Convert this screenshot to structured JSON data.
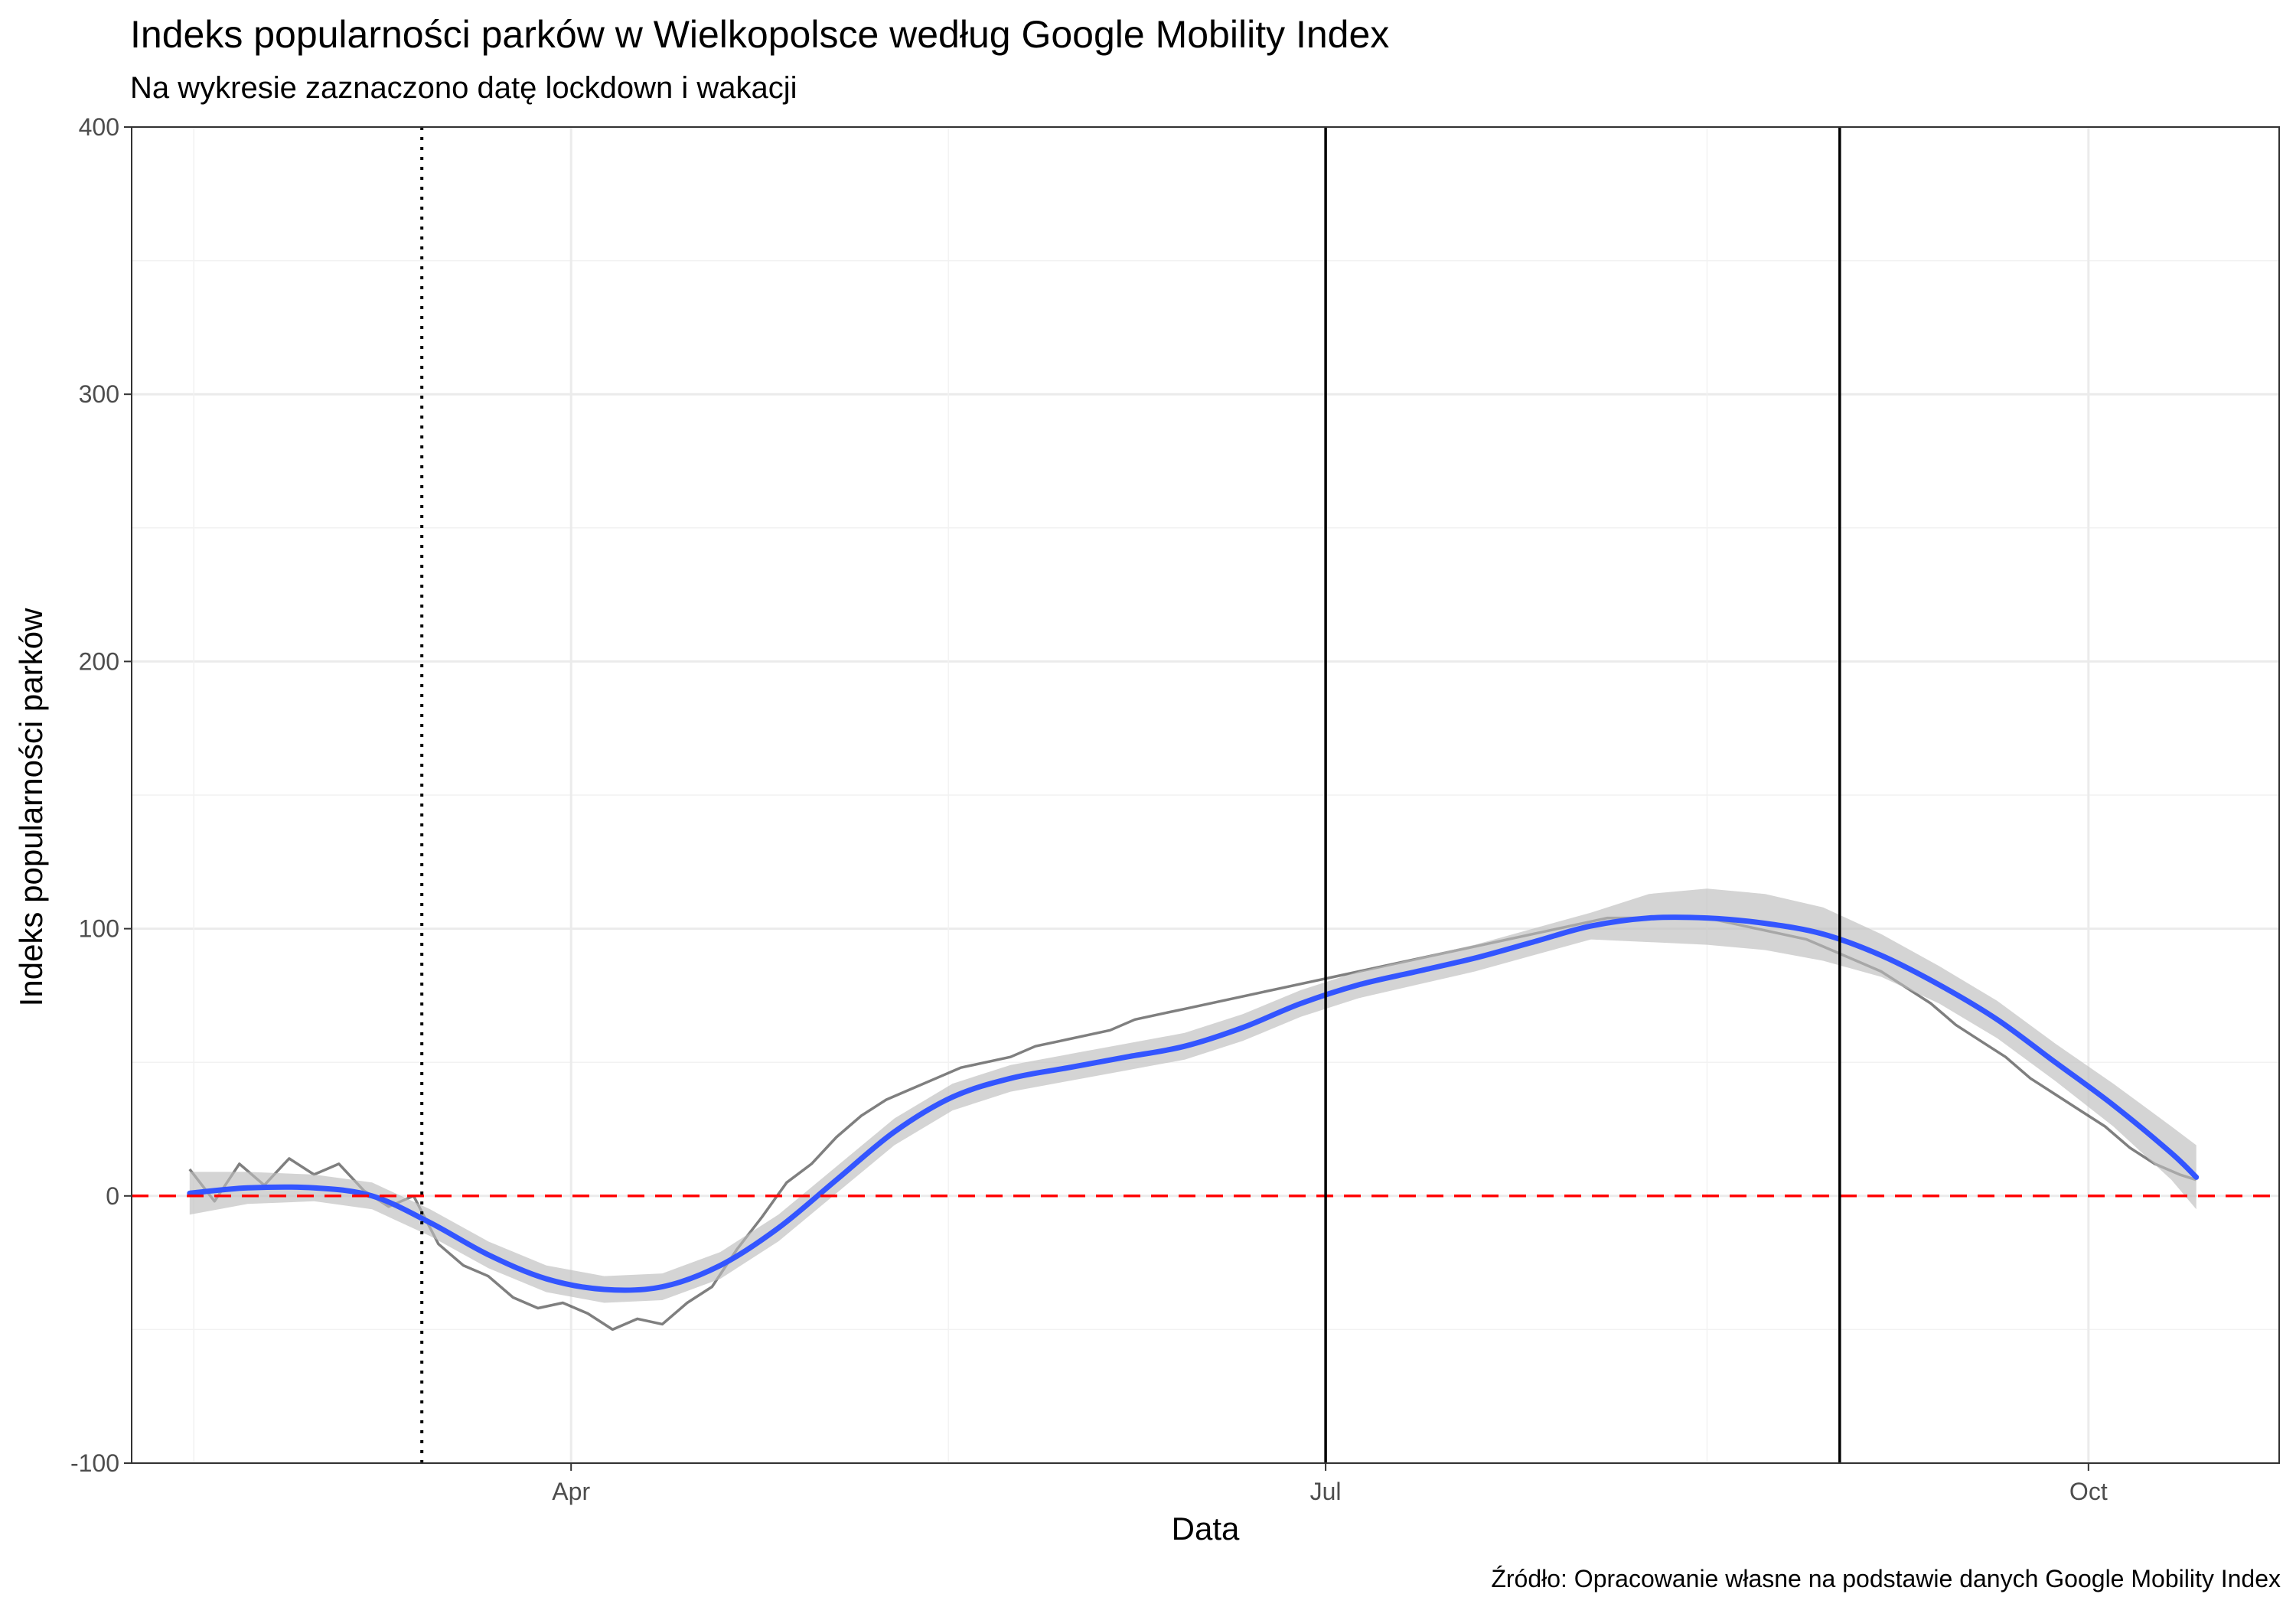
{
  "chart_data": {
    "type": "line",
    "title": "Indeks popularności parków w Wielkopolsce według Google Mobility Index",
    "subtitle": "Na wykresie zaznaczono datę lockdown i wakacji",
    "xlabel": "Data",
    "ylabel": "Indeks popularności parków",
    "caption": "Źródło: Opracowanie własne na podstawie danych Google Mobility Index",
    "x_type": "date",
    "xlim": [
      "2020-02-08",
      "2020-10-24"
    ],
    "ylim": [
      -100,
      400
    ],
    "x_ticks": [
      {
        "date": "2020-04-01",
        "label": "Apr"
      },
      {
        "date": "2020-07-01",
        "label": "Jul"
      },
      {
        "date": "2020-10-01",
        "label": "Oct"
      }
    ],
    "y_ticks": [
      -100,
      0,
      100,
      200,
      300,
      400
    ],
    "grid": true,
    "reference_lines": [
      {
        "type": "horizontal",
        "y": 0,
        "color": "#ff0000",
        "style": "dashed"
      },
      {
        "type": "vertical",
        "x": "2020-03-14",
        "color": "#000000",
        "style": "dotted",
        "meaning": "lockdown"
      },
      {
        "type": "vertical",
        "x": "2020-07-01",
        "color": "#000000",
        "style": "solid",
        "meaning": "wakacje start"
      },
      {
        "type": "vertical",
        "x": "2020-09-01",
        "color": "#000000",
        "style": "solid",
        "meaning": "wakacje koniec"
      }
    ],
    "series_color": "#000000",
    "series_opacity": 0.5,
    "series": [
      {
        "values": [
          [
            "2020-02-15",
            10
          ],
          [
            "2020-02-18",
            -2
          ],
          [
            "2020-02-21",
            12
          ],
          [
            "2020-02-24",
            4
          ],
          [
            "2020-02-27",
            14
          ],
          [
            "2020-03-01",
            8
          ],
          [
            "2020-03-04",
            12
          ],
          [
            "2020-03-07",
            2
          ],
          [
            "2020-03-10",
            -4
          ],
          [
            "2020-03-13",
            0
          ],
          [
            "2020-03-16",
            -18
          ],
          [
            "2020-03-19",
            -26
          ],
          [
            "2020-03-22",
            -30
          ],
          [
            "2020-03-25",
            -38
          ],
          [
            "2020-03-28",
            -42
          ],
          [
            "2020-03-31",
            -40
          ],
          [
            "2020-04-03",
            -44
          ],
          [
            "2020-04-06",
            -50
          ],
          [
            "2020-04-09",
            -46
          ],
          [
            "2020-04-12",
            -48
          ],
          [
            "2020-04-15",
            -40
          ],
          [
            "2020-04-18",
            -34
          ],
          [
            "2020-04-21",
            -20
          ],
          [
            "2020-04-24",
            -8
          ],
          [
            "2020-04-27",
            5
          ],
          [
            "2020-04-30",
            12
          ],
          [
            "2020-05-03",
            22
          ],
          [
            "2020-05-06",
            30
          ],
          [
            "2020-05-09",
            36
          ],
          [
            "2020-05-12",
            40
          ],
          [
            "2020-05-15",
            44
          ],
          [
            "2020-05-18",
            48
          ],
          [
            "2020-05-21",
            50
          ],
          [
            "2020-05-24",
            52
          ],
          [
            "2020-05-27",
            56
          ],
          [
            "2020-05-30",
            58
          ],
          [
            "2020-06-02",
            60
          ],
          [
            "2020-06-05",
            62
          ],
          [
            "2020-06-08",
            66
          ],
          [
            "2020-06-11",
            68
          ],
          [
            "2020-06-14",
            70
          ],
          [
            "2020-06-17",
            72
          ],
          [
            "2020-06-20",
            74
          ],
          [
            "2020-06-23",
            76
          ],
          [
            "2020-06-26",
            78
          ],
          [
            "2020-06-29",
            80
          ],
          [
            "2020-07-02",
            82
          ],
          [
            "2020-07-05",
            84
          ],
          [
            "2020-07-08",
            86
          ],
          [
            "2020-07-11",
            88
          ],
          [
            "2020-07-14",
            90
          ],
          [
            "2020-07-17",
            92
          ],
          [
            "2020-07-20",
            94
          ],
          [
            "2020-07-23",
            96
          ],
          [
            "2020-07-26",
            98
          ],
          [
            "2020-07-29",
            100
          ],
          [
            "2020-08-01",
            102
          ],
          [
            "2020-08-04",
            104
          ],
          [
            "2020-08-07",
            104
          ],
          [
            "2020-08-10",
            104
          ],
          [
            "2020-08-13",
            104
          ],
          [
            "2020-08-16",
            104
          ],
          [
            "2020-08-19",
            102
          ],
          [
            "2020-08-22",
            100
          ],
          [
            "2020-08-25",
            98
          ],
          [
            "2020-08-28",
            96
          ],
          [
            "2020-08-31",
            92
          ],
          [
            "2020-09-03",
            88
          ],
          [
            "2020-09-06",
            84
          ],
          [
            "2020-09-09",
            78
          ],
          [
            "2020-09-12",
            72
          ],
          [
            "2020-09-15",
            64
          ],
          [
            "2020-09-18",
            58
          ],
          [
            "2020-09-21",
            52
          ],
          [
            "2020-09-24",
            44
          ],
          [
            "2020-09-27",
            38
          ],
          [
            "2020-09-30",
            32
          ],
          [
            "2020-10-03",
            26
          ],
          [
            "2020-10-06",
            18
          ],
          [
            "2020-10-09",
            12
          ],
          [
            "2020-10-12",
            8
          ],
          [
            "2020-10-14",
            6
          ]
        ]
      }
    ],
    "smooth": {
      "color": "#3355ff",
      "band_color": "#bdbdbd",
      "points": [
        {
          "x": "2020-02-15",
          "y": 1,
          "lo": -7,
          "hi": 9
        },
        {
          "x": "2020-02-22",
          "y": 3,
          "lo": -3,
          "hi": 9
        },
        {
          "x": "2020-03-01",
          "y": 3,
          "lo": -2,
          "hi": 8
        },
        {
          "x": "2020-03-08",
          "y": 0,
          "lo": -5,
          "hi": 5
        },
        {
          "x": "2020-03-15",
          "y": -10,
          "lo": -15,
          "hi": -5
        },
        {
          "x": "2020-03-22",
          "y": -22,
          "lo": -27,
          "hi": -17
        },
        {
          "x": "2020-03-29",
          "y": -31,
          "lo": -36,
          "hi": -26
        },
        {
          "x": "2020-04-05",
          "y": -35,
          "lo": -40,
          "hi": -30
        },
        {
          "x": "2020-04-12",
          "y": -34,
          "lo": -39,
          "hi": -29
        },
        {
          "x": "2020-04-19",
          "y": -26,
          "lo": -31,
          "hi": -21
        },
        {
          "x": "2020-04-26",
          "y": -12,
          "lo": -17,
          "hi": -7
        },
        {
          "x": "2020-05-03",
          "y": 6,
          "lo": 1,
          "hi": 11
        },
        {
          "x": "2020-05-10",
          "y": 24,
          "lo": 19,
          "hi": 29
        },
        {
          "x": "2020-05-17",
          "y": 37,
          "lo": 32,
          "hi": 42
        },
        {
          "x": "2020-05-24",
          "y": 44,
          "lo": 39,
          "hi": 49
        },
        {
          "x": "2020-05-31",
          "y": 48,
          "lo": 43,
          "hi": 53
        },
        {
          "x": "2020-06-07",
          "y": 52,
          "lo": 47,
          "hi": 57
        },
        {
          "x": "2020-06-14",
          "y": 56,
          "lo": 51,
          "hi": 61
        },
        {
          "x": "2020-06-21",
          "y": 63,
          "lo": 58,
          "hi": 68
        },
        {
          "x": "2020-06-28",
          "y": 72,
          "lo": 67,
          "hi": 77
        },
        {
          "x": "2020-07-05",
          "y": 79,
          "lo": 74,
          "hi": 84
        },
        {
          "x": "2020-07-12",
          "y": 84,
          "lo": 79,
          "hi": 89
        },
        {
          "x": "2020-07-19",
          "y": 89,
          "lo": 84,
          "hi": 94
        },
        {
          "x": "2020-07-26",
          "y": 95,
          "lo": 90,
          "hi": 100
        },
        {
          "x": "2020-08-02",
          "y": 101,
          "lo": 96,
          "hi": 106
        },
        {
          "x": "2020-08-09",
          "y": 104,
          "lo": 95,
          "hi": 113
        },
        {
          "x": "2020-08-16",
          "y": 104,
          "lo": 94,
          "hi": 115
        },
        {
          "x": "2020-08-23",
          "y": 102,
          "lo": 92,
          "hi": 113
        },
        {
          "x": "2020-08-30",
          "y": 98,
          "lo": 88,
          "hi": 108
        },
        {
          "x": "2020-09-06",
          "y": 90,
          "lo": 82,
          "hi": 98
        },
        {
          "x": "2020-09-13",
          "y": 79,
          "lo": 72,
          "hi": 86
        },
        {
          "x": "2020-09-20",
          "y": 66,
          "lo": 59,
          "hi": 73
        },
        {
          "x": "2020-09-27",
          "y": 50,
          "lo": 43,
          "hi": 57
        },
        {
          "x": "2020-10-04",
          "y": 34,
          "lo": 26,
          "hi": 42
        },
        {
          "x": "2020-10-11",
          "y": 16,
          "lo": 6,
          "hi": 26
        },
        {
          "x": "2020-10-14",
          "y": 7,
          "lo": -5,
          "hi": 19
        }
      ]
    }
  }
}
